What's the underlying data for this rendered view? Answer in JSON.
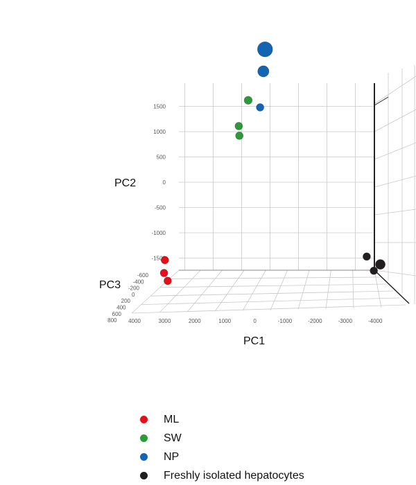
{
  "chart_data": {
    "type": "scatter",
    "title": "",
    "axes": {
      "pc1": {
        "label": "PC1",
        "ticks": [
          "4000",
          "3000",
          "2000",
          "1000",
          "0",
          "-1000",
          "-2000",
          "-3000",
          "-4000"
        ]
      },
      "pc2": {
        "label": "PC2",
        "ticks": [
          "1500",
          "1000",
          "500",
          "0",
          "-500",
          "-1000",
          "-1500"
        ]
      },
      "pc3": {
        "label": "PC3",
        "ticks": [
          "-600",
          "-400",
          "-200",
          "0",
          "200",
          "400",
          "600",
          "800"
        ]
      }
    },
    "grid": true,
    "legend_position": "bottom",
    "series": [
      {
        "name": "ML",
        "color": "#e3101a",
        "points": [
          {
            "pc1": 3200,
            "pc2": -1540,
            "pc3": 0
          },
          {
            "pc1": 3400,
            "pc2": -1850,
            "pc3": -200
          },
          {
            "pc1": 3100,
            "pc2": -1950,
            "pc3": 0
          }
        ]
      },
      {
        "name": "SW",
        "color": "#2d9a3a",
        "points": [
          {
            "pc1": 270,
            "pc2": 1620,
            "pc3": 0
          },
          {
            "pc1": 600,
            "pc2": 1110,
            "pc3": 0
          },
          {
            "pc1": 580,
            "pc2": 920,
            "pc3": 0
          }
        ]
      },
      {
        "name": "NP",
        "color": "#1464b4",
        "points": [
          {
            "pc1": -580,
            "pc2": 2710,
            "pc3": 300
          },
          {
            "pc1": -350,
            "pc2": 2220,
            "pc3": 100
          },
          {
            "pc1": -150,
            "pc2": 1480,
            "pc3": 0
          }
        ]
      },
      {
        "name": "Freshly isolated hepatocytes",
        "color": "#221e1f",
        "points": [
          {
            "pc1": -3900,
            "pc2": -1470,
            "pc3": 0
          },
          {
            "pc1": -4150,
            "pc2": -1750,
            "pc3": 0
          },
          {
            "pc1": -4550,
            "pc2": -1570,
            "pc3": 200
          }
        ]
      }
    ]
  },
  "legend": {
    "items": [
      {
        "label": "ML",
        "color": "#e3101a"
      },
      {
        "label": "SW",
        "color": "#2d9a3a"
      },
      {
        "label": "NP",
        "color": "#1464b4"
      },
      {
        "label": "Freshly isolated hepatocytes",
        "color": "#221e1f"
      }
    ]
  }
}
